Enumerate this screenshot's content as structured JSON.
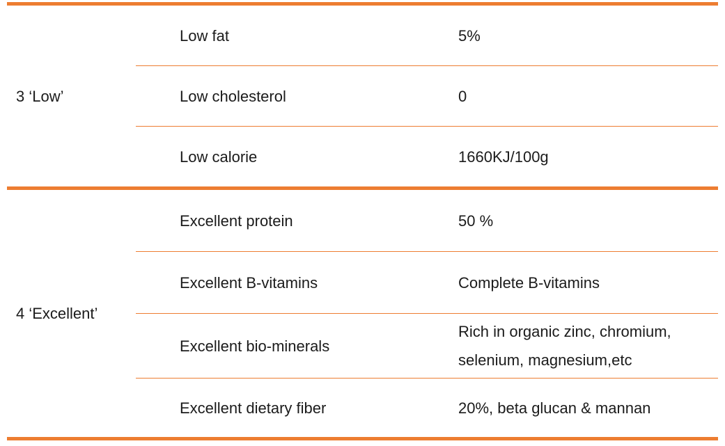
{
  "page": {
    "accent_color": "#ED7D31",
    "text_color": "#1b1b1b",
    "background_color": "#ffffff"
  },
  "table": {
    "groups": [
      {
        "label": "3 ‘Low’",
        "rows": [
          {
            "attribute": "Low fat",
            "value": "5%"
          },
          {
            "attribute": "Low cholesterol",
            "value": "0"
          },
          {
            "attribute": "Low calorie",
            "value": "1660KJ/100g"
          }
        ]
      },
      {
        "label": "4 ‘Excellent’",
        "rows": [
          {
            "attribute": "Excellent protein",
            "value": "50 %"
          },
          {
            "attribute": "Excellent B-vitamins",
            "value": "Complete B-vitamins"
          },
          {
            "attribute": "Excellent bio-minerals",
            "value": "Rich in organic zinc, chromium, selenium, magnesium,etc"
          },
          {
            "attribute": "Excellent dietary fiber",
            "value": "20%, beta glucan & mannan"
          }
        ]
      }
    ]
  }
}
